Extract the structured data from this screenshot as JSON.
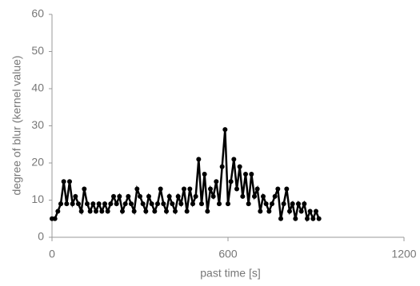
{
  "chart_data": {
    "type": "line",
    "xlabel": "past time [s]",
    "ylabel": "degree of blur (kernel value)",
    "xlim": [
      0,
      1200
    ],
    "xticks": [
      0,
      600,
      1200
    ],
    "ylim": [
      0,
      60
    ],
    "yticks": [
      0,
      10,
      20,
      30,
      40,
      50,
      60
    ],
    "grid": false,
    "series": [
      {
        "color": "#000000",
        "x": [
          0,
          10,
          20,
          30,
          40,
          50,
          60,
          70,
          80,
          90,
          100,
          110,
          120,
          130,
          140,
          150,
          160,
          170,
          180,
          190,
          200,
          210,
          220,
          230,
          240,
          250,
          260,
          270,
          280,
          290,
          300,
          310,
          320,
          330,
          340,
          350,
          360,
          370,
          380,
          390,
          400,
          410,
          420,
          430,
          440,
          450,
          460,
          470,
          480,
          490,
          500,
          510,
          520,
          530,
          540,
          550,
          560,
          570,
          580,
          590,
          600,
          610,
          620,
          630,
          640,
          650,
          660,
          670,
          680,
          690,
          700,
          710,
          720,
          730,
          740,
          750,
          760,
          770,
          780,
          790,
          800,
          810,
          820,
          830,
          840,
          850,
          860,
          870,
          880,
          890,
          900,
          910
        ],
        "values": [
          5,
          5,
          7,
          9,
          15,
          9,
          15,
          9,
          11,
          9,
          7,
          13,
          9,
          7,
          9,
          7,
          9,
          7,
          9,
          7,
          9,
          11,
          9,
          11,
          7,
          9,
          11,
          9,
          7,
          13,
          11,
          9,
          7,
          11,
          9,
          7,
          9,
          13,
          9,
          7,
          11,
          9,
          7,
          11,
          9,
          13,
          7,
          13,
          9,
          11,
          21,
          9,
          17,
          7,
          13,
          11,
          15,
          9,
          19,
          29,
          9,
          15,
          21,
          13,
          19,
          11,
          17,
          9,
          17,
          11,
          13,
          7,
          11,
          9,
          7,
          9,
          11,
          13,
          5,
          9,
          13,
          7,
          9,
          5,
          9,
          7,
          9,
          5,
          7,
          5,
          7,
          5
        ]
      }
    ]
  }
}
